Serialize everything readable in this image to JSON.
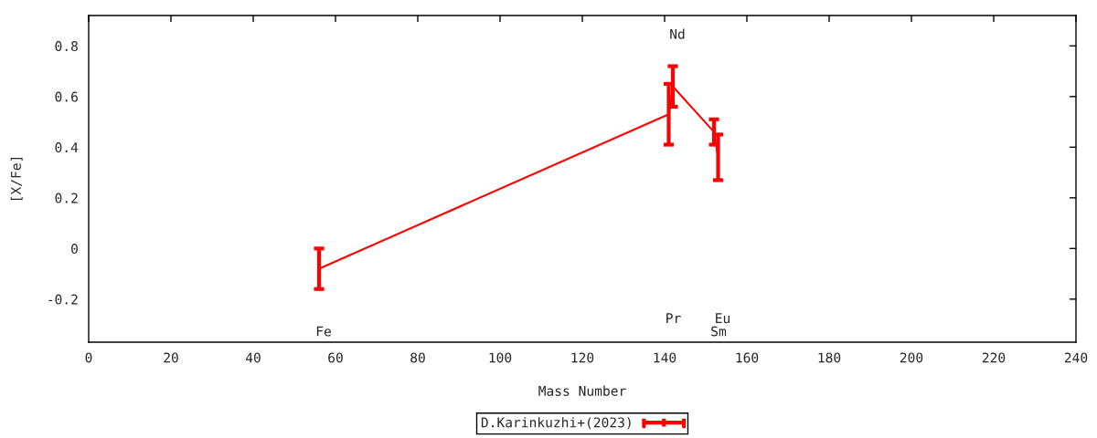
{
  "chart_data": {
    "type": "line",
    "xlabel": "Mass Number",
    "ylabel": "[X/Fe]",
    "x": [
      56,
      141,
      142,
      152,
      153
    ],
    "series": [
      {
        "name": "D.Karinkuzhi+(2023)",
        "color": "#ff0000",
        "values": [
          -0.08,
          0.53,
          0.64,
          0.46,
          0.36
        ],
        "errors": [
          0.08,
          0.12,
          0.08,
          0.05,
          0.09
        ]
      }
    ],
    "xlim": [
      0,
      240
    ],
    "xticks": [
      0,
      20,
      40,
      60,
      80,
      100,
      120,
      140,
      160,
      180,
      200,
      220,
      240
    ],
    "ylim": [
      -0.37,
      0.92
    ],
    "yticks": [
      -0.2,
      0,
      0.2,
      0.4,
      0.6,
      0.8
    ],
    "annotations": [
      "Fe",
      "Pr",
      "Nd",
      "Sm",
      "Eu"
    ],
    "legend": "bottom",
    "line_style": "solid"
  }
}
